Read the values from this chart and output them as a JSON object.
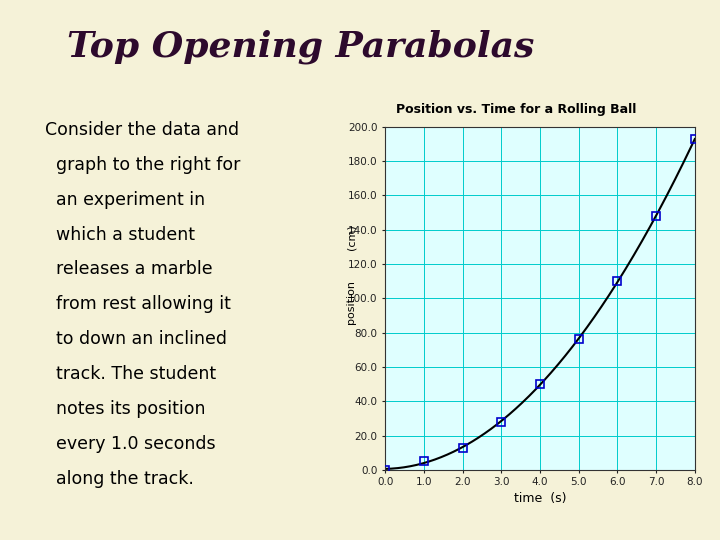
{
  "title": "Top Opening Parabolas",
  "slide_bg": "#f5f2d8",
  "sidebar_color": "#c8c89a",
  "body_lines": [
    "Consider the data and",
    "  graph to the right for",
    "  an experiment in",
    "  which a student",
    "  releases a marble",
    "  from rest allowing it",
    "  to down an inclined",
    "  track. The student",
    "  notes its position",
    "  every 1.0 seconds",
    "  along the track."
  ],
  "graph_title": "Position vs. Time for a Rolling Ball",
  "graph_title_bg": "#aaaaaa",
  "xlabel": "time  (s)",
  "ylabel_top": "(cm)",
  "ylabel_bot": "position",
  "time_data": [
    0.0,
    1.0,
    2.0,
    3.0,
    4.0,
    5.0,
    6.0,
    7.0,
    8.0
  ],
  "position_data": [
    0.0,
    5.0,
    13.0,
    28.0,
    50.0,
    76.0,
    110.0,
    148.0,
    193.0
  ],
  "ylim": [
    0.0,
    200.0
  ],
  "xlim": [
    0.0,
    8.0
  ],
  "yticks": [
    0.0,
    20.0,
    40.0,
    60.0,
    80.0,
    100.0,
    120.0,
    140.0,
    160.0,
    180.0,
    200.0
  ],
  "xticks": [
    0.0,
    1.0,
    2.0,
    3.0,
    4.0,
    5.0,
    6.0,
    7.0,
    8.0
  ],
  "graph_bg": "#dfffff",
  "grid_color": "#00cccc",
  "marker_color": "#0000cc",
  "line_color": "#000000",
  "title_color": "#2d0a2d",
  "text_color": "#000000",
  "divider_color": "#3d0020",
  "graph_outer_bg": "#e8e8e8"
}
